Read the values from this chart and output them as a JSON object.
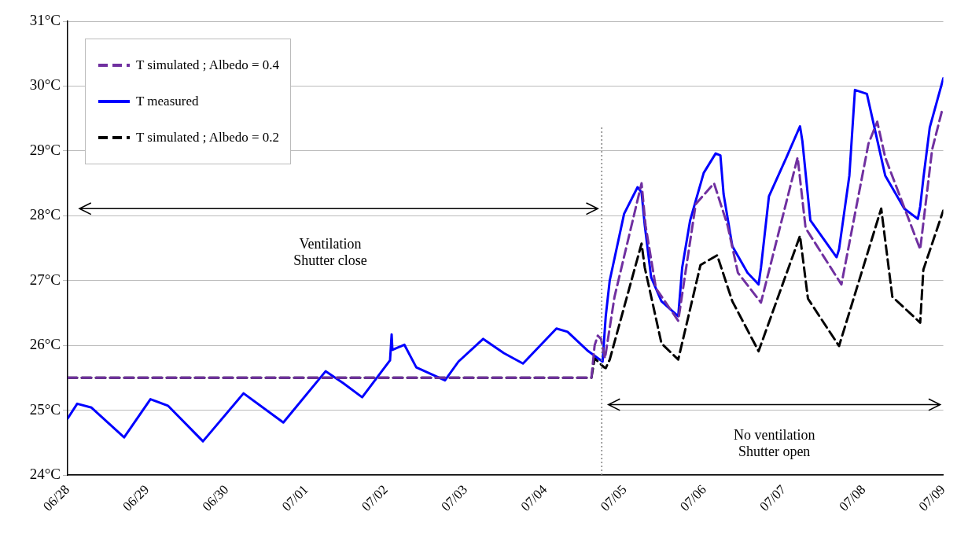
{
  "chart_data": {
    "type": "line",
    "annotations": [
      "Ventilation\nShutter close",
      "No ventilation\nShutter open"
    ],
    "xlim": [
      "--06-28",
      "--07-09"
    ],
    "xticks": [
      {
        "value": "--06-28",
        "label": "06/28"
      },
      {
        "value": "--06-29",
        "label": "06/29"
      },
      {
        "value": "--06-30",
        "label": "06/30"
      },
      {
        "value": "--07-01",
        "label": "07/01"
      },
      {
        "value": "--07-02",
        "label": "07/02"
      },
      {
        "value": "--07-03",
        "label": "07/03"
      },
      {
        "value": "--07-04",
        "label": "07/04"
      },
      {
        "value": "--07-05",
        "label": "07/05"
      },
      {
        "value": "--07-06",
        "label": "07/06"
      },
      {
        "value": "--07-07",
        "label": "07/07"
      },
      {
        "value": "--07-08",
        "label": "07/08"
      },
      {
        "value": "--07-09",
        "label": "07/09"
      }
    ],
    "ylim": [
      24,
      31
    ],
    "yticks": [
      {
        "value": 24,
        "label": "24°C"
      },
      {
        "value": 25,
        "label": "25°C"
      },
      {
        "value": 26,
        "label": "26°C"
      },
      {
        "value": 27,
        "label": "27°C"
      },
      {
        "value": 28,
        "label": "28°C"
      },
      {
        "value": 29,
        "label": "29°C"
      },
      {
        "value": 30,
        "label": "30°C"
      },
      {
        "value": 31,
        "label": "31°C"
      }
    ],
    "grid": "y",
    "legend": "top left",
    "marker": "none",
    "ref_lines": [
      {
        "axis": "x",
        "value": "--07-04T17:02",
        "color": "#808080",
        "line_style": "dotted"
      }
    ],
    "series": [
      {
        "name": "T simulated ; Albedo = 0.4",
        "color": "#7030a0",
        "line_style": "dashed",
        "x": [
          "--06-28T00:00",
          "--07-04T13:55",
          "--07-04T14:53",
          "--07-04T15:50",
          "--07-04T16:48",
          "--07-04T18:00",
          "--07-04T20:53",
          "--07-05T05:02",
          "--07-05T06:14",
          "--07-05T09:22",
          "--07-05T16:05",
          "--07-05T21:22",
          "--07-06T02:53",
          "--07-06T06:58",
          "--07-06T10:05",
          "--07-06T17:02",
          "--07-07T04:05",
          "--07-07T06:29",
          "--07-07T17:17",
          "--07-08T01:26",
          "--07-08T04:05",
          "--07-08T06:29",
          "--07-08T17:02",
          "--07-08T20:38",
          "--07-08T23:31"
        ],
        "values": [
          25.5,
          25.5,
          26.0,
          26.15,
          26.1,
          25.8,
          26.75,
          28.5,
          27.85,
          26.88,
          26.38,
          28.18,
          28.5,
          27.85,
          27.12,
          26.66,
          28.9,
          27.81,
          26.94,
          29.11,
          29.45,
          28.9,
          27.48,
          29.02,
          29.6
        ]
      },
      {
        "name": "T measured",
        "color": "#0000ff",
        "line_style": "solid",
        "x": [
          "--06-28T00:00",
          "--06-28T02:53",
          "--06-28T07:12",
          "--06-28T17:02",
          "--06-29T00:58",
          "--06-29T06:14",
          "--06-29T16:48",
          "--06-30T05:02",
          "--06-30T17:02",
          "--07-01T05:46",
          "--07-01T11:02",
          "--07-01T16:48",
          "--07-02T01:12",
          "--07-02T01:41",
          "--07-02T01:55",
          "--07-02T05:31",
          "--07-02T09:07",
          "--07-02T17:46",
          "--07-02T21:50",
          "--07-03T05:17",
          "--07-03T11:31",
          "--07-03T17:17",
          "--07-04T03:22",
          "--07-04T06:43",
          "--07-04T12:58",
          "--07-04T17:17",
          "--07-04T18:14",
          "--07-04T19:26",
          "--07-04T23:46",
          "--07-05T03:50",
          "--07-05T05:02",
          "--07-05T06:00",
          "--07-05T07:55",
          "--07-05T11:02",
          "--07-05T16:05",
          "--07-05T17:17",
          "--07-05T19:41",
          "--07-05T23:46",
          "--07-06T03:22",
          "--07-06T04:48",
          "--07-06T05:46",
          "--07-06T08:24",
          "--07-06T12:58",
          "--07-06T16:19",
          "--07-06T17:02",
          "--07-06T19:26",
          "--07-07T00:43",
          "--07-07T04:48",
          "--07-07T05:31",
          "--07-07T07:55",
          "--07-07T15:50",
          "--07-07T16:34",
          "--07-07T19:41",
          "--07-07T21:22",
          "--07-08T00:58",
          "--07-08T06:29",
          "--07-08T12:14",
          "--07-08T16:19",
          "--07-08T17:02",
          "--07-08T18:00",
          "--07-08T19:55",
          "--07-09T00:00"
        ],
        "values": [
          24.87,
          25.1,
          25.04,
          24.58,
          25.17,
          25.07,
          24.52,
          25.26,
          24.81,
          25.6,
          25.42,
          25.2,
          25.77,
          26.17,
          25.93,
          26.01,
          25.66,
          25.46,
          25.75,
          26.1,
          25.88,
          25.72,
          26.26,
          26.21,
          25.91,
          25.75,
          26.45,
          27.0,
          28.03,
          28.44,
          28.36,
          27.85,
          27.05,
          26.68,
          26.45,
          27.2,
          27.93,
          28.66,
          28.96,
          28.93,
          28.33,
          27.53,
          27.12,
          26.94,
          27.2,
          28.3,
          28.9,
          29.38,
          29.15,
          27.93,
          27.36,
          27.48,
          28.62,
          29.94,
          29.88,
          28.62,
          28.11,
          27.95,
          28.14,
          28.58,
          29.36,
          30.12
        ]
      },
      {
        "name": "T simulated ; Albedo = 0.2",
        "color": "#000000",
        "line_style": "dashed",
        "x": [
          "--06-28T00:00",
          "--07-04T13:55",
          "--07-04T14:53",
          "--07-04T17:46",
          "--07-04T18:14",
          "--07-04T19:26",
          "--07-05T05:02",
          "--07-05T06:00",
          "--07-05T11:02",
          "--07-05T16:05",
          "--07-05T22:48",
          "--07-06T03:50",
          "--07-06T08:24",
          "--07-06T16:19",
          "--07-07T04:48",
          "--07-07T07:12",
          "--07-07T16:34",
          "--07-08T05:17",
          "--07-08T08:38",
          "--07-08T17:02",
          "--07-08T18:00",
          "--07-09T00:00"
        ],
        "values": [
          25.5,
          25.5,
          25.8,
          25.66,
          25.65,
          25.78,
          27.57,
          27.2,
          26.03,
          25.78,
          27.24,
          27.39,
          26.68,
          25.91,
          27.69,
          26.72,
          25.99,
          28.11,
          26.75,
          26.35,
          27.17,
          28.08
        ]
      }
    ]
  }
}
